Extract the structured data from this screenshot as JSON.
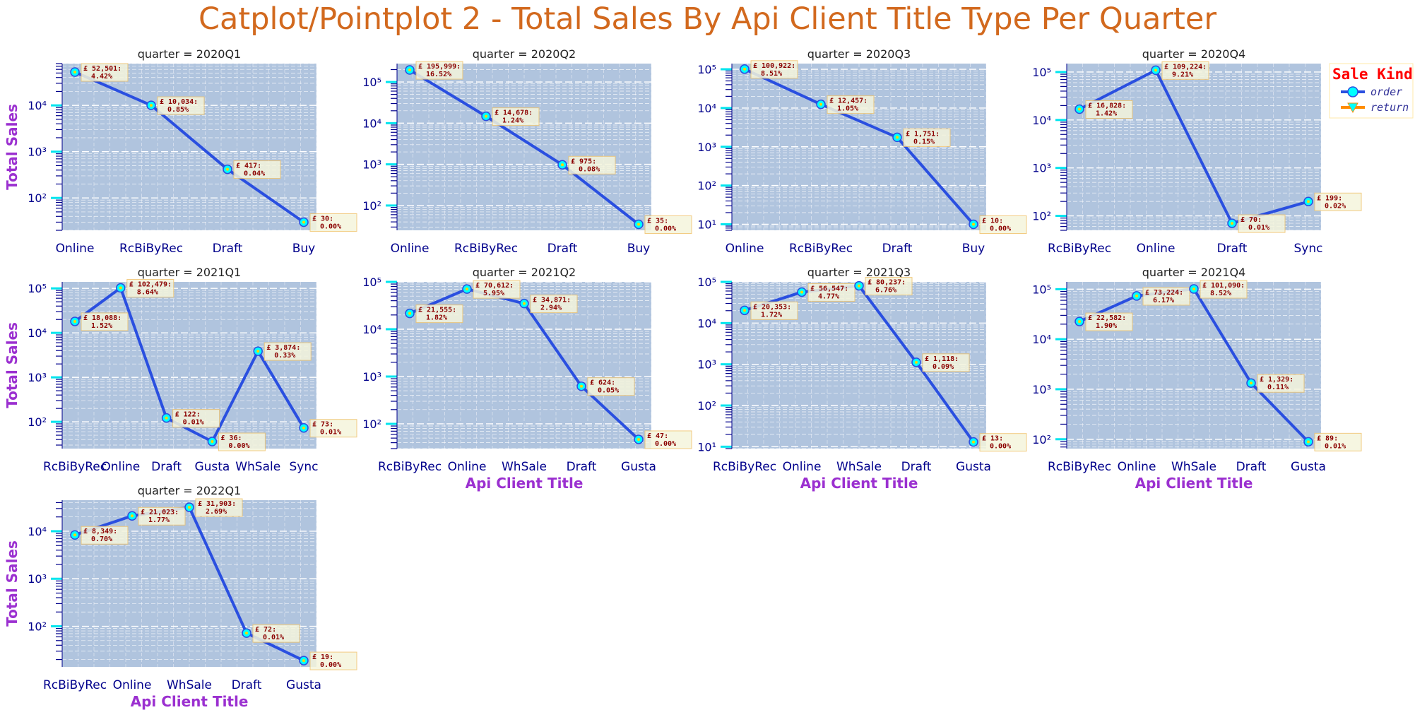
{
  "title": "Catplot/Pointplot 2 - Total Sales By Api Client Title Type Per Quarter",
  "chart_data": {
    "type": "line",
    "facet_label": "quarter",
    "ylabel": "Total Sales",
    "xlabel": "Api Client Title",
    "y_scale": "log",
    "colors": {
      "line": "#2a4fe0",
      "marker": "#00ffff",
      "plot_bg": "#b0c4de",
      "title": "#d2691e",
      "axis_label": "#9b30d0",
      "tick": "#00008b",
      "annotation": "#8b0000",
      "annotation_bg": "#f5f5dc",
      "legend_title": "#ff0000"
    },
    "legend": {
      "title": "Sale Kind",
      "placement": "top-right",
      "entries": [
        {
          "label": "order",
          "line_color": "#2a4fe0",
          "marker": "circle",
          "marker_color": "#00ffff"
        },
        {
          "label": "return",
          "line_color": "#ff8c00",
          "marker": "triangle-down",
          "marker_color": "#00ffff"
        }
      ]
    },
    "panels": [
      {
        "quarter": "2020Q1",
        "ylim": [
          20,
          80000
        ],
        "yticks": [
          {
            "v": 100,
            "t": "10²"
          },
          {
            "v": 1000,
            "t": "10³"
          },
          {
            "v": 10000,
            "t": "10⁴"
          }
        ],
        "categories": [
          "Online",
          "RcBiByRec",
          "Draft",
          "Buy"
        ],
        "series": [
          {
            "name": "order",
            "values": [
              52501,
              10034,
              417,
              30
            ],
            "labels": [
              "£ 52,501:",
              "£ 10,034:",
              "£ 417:",
              "£ 30:"
            ],
            "pcts": [
              "4.42%",
              "0.85%",
              "0.04%",
              "0.00%"
            ]
          }
        ]
      },
      {
        "quarter": "2020Q2",
        "ylim": [
          25,
          280000
        ],
        "yticks": [
          {
            "v": 100,
            "t": "10²"
          },
          {
            "v": 1000,
            "t": "10³"
          },
          {
            "v": 10000,
            "t": "10⁴"
          },
          {
            "v": 100000,
            "t": "10⁵"
          }
        ],
        "categories": [
          "Online",
          "RcBiByRec",
          "Draft",
          "Buy"
        ],
        "series": [
          {
            "name": "order",
            "values": [
              195999,
              14678,
              975,
              35
            ],
            "labels": [
              "£ 195,999:",
              "£ 14,678:",
              "£ 975:",
              "£ 35:"
            ],
            "pcts": [
              "16.52%",
              "1.24%",
              "0.08%",
              "0.00%"
            ]
          }
        ]
      },
      {
        "quarter": "2020Q3",
        "ylim": [
          7,
          140000
        ],
        "yticks": [
          {
            "v": 10,
            "t": "10¹"
          },
          {
            "v": 100,
            "t": "10²"
          },
          {
            "v": 1000,
            "t": "10³"
          },
          {
            "v": 10000,
            "t": "10⁴"
          },
          {
            "v": 100000,
            "t": "10⁵"
          }
        ],
        "categories": [
          "Online",
          "RcBiByRec",
          "Draft",
          "Buy"
        ],
        "series": [
          {
            "name": "order",
            "values": [
              100922,
              12457,
              1751,
              10
            ],
            "labels": [
              "£ 100,922:",
              "£ 12,457:",
              "£ 1,751:",
              "£ 10:"
            ],
            "pcts": [
              "8.51%",
              "1.05%",
              "0.15%",
              "0.00%"
            ]
          }
        ]
      },
      {
        "quarter": "2020Q4",
        "ylim": [
          50,
          150000
        ],
        "yticks": [
          {
            "v": 100,
            "t": "10²"
          },
          {
            "v": 1000,
            "t": "10³"
          },
          {
            "v": 10000,
            "t": "10⁴"
          },
          {
            "v": 100000,
            "t": "10⁵"
          }
        ],
        "categories": [
          "RcBiByRec",
          "Online",
          "Draft",
          "Sync"
        ],
        "series": [
          {
            "name": "order",
            "values": [
              16828,
              109224,
              70,
              199
            ],
            "labels": [
              "£ 16,828:",
              "£ 109,224:",
              "£ 70:",
              "£ 199:"
            ],
            "pcts": [
              "1.42%",
              "9.21%",
              "0.01%",
              "0.02%"
            ]
          }
        ]
      },
      {
        "quarter": "2021Q1",
        "ylim": [
          25,
          140000
        ],
        "yticks": [
          {
            "v": 100,
            "t": "10²"
          },
          {
            "v": 1000,
            "t": "10³"
          },
          {
            "v": 10000,
            "t": "10⁴"
          },
          {
            "v": 100000,
            "t": "10⁵"
          }
        ],
        "categories": [
          "RcBiByRec",
          "Online",
          "Draft",
          "Gusta",
          "WhSale",
          "Sync"
        ],
        "series": [
          {
            "name": "order",
            "values": [
              18088,
              102479,
              122,
              36,
              3874,
              73
            ],
            "labels": [
              "£ 18,088:",
              "£ 102,479:",
              "£ 122:",
              "£ 36:",
              "£ 3,874:",
              "£ 73:"
            ],
            "pcts": [
              "1.52%",
              "8.64%",
              "0.01%",
              "0.00%",
              "0.33%",
              "0.01%"
            ]
          }
        ]
      },
      {
        "quarter": "2021Q2",
        "ylim": [
          30,
          100000
        ],
        "yticks": [
          {
            "v": 100,
            "t": "10²"
          },
          {
            "v": 1000,
            "t": "10³"
          },
          {
            "v": 10000,
            "t": "10⁴"
          },
          {
            "v": 100000,
            "t": "10⁵"
          }
        ],
        "categories": [
          "RcBiByRec",
          "Online",
          "WhSale",
          "Draft",
          "Gusta"
        ],
        "series": [
          {
            "name": "order",
            "values": [
              21555,
              70612,
              34871,
              624,
              47
            ],
            "labels": [
              "£ 21,555:",
              "£ 70,612:",
              "£ 34,871:",
              "£ 624:",
              "£ 47:"
            ],
            "pcts": [
              "1.82%",
              "5.95%",
              "2.94%",
              "0.05%",
              "0.00%"
            ]
          }
        ]
      },
      {
        "quarter": "2021Q3",
        "ylim": [
          9,
          100000
        ],
        "yticks": [
          {
            "v": 10,
            "t": "10¹"
          },
          {
            "v": 100,
            "t": "10²"
          },
          {
            "v": 1000,
            "t": "10³"
          },
          {
            "v": 10000,
            "t": "10⁴"
          },
          {
            "v": 100000,
            "t": "10⁵"
          }
        ],
        "categories": [
          "RcBiByRec",
          "Online",
          "WhSale",
          "Draft",
          "Gusta"
        ],
        "series": [
          {
            "name": "order",
            "values": [
              20353,
              56547,
              80237,
              1118,
              13
            ],
            "labels": [
              "£ 20,353:",
              "£ 56,547:",
              "£ 80,237:",
              "£ 1,118:",
              "£ 13:"
            ],
            "pcts": [
              "1.72%",
              "4.77%",
              "6.76%",
              "0.09%",
              "0.00%"
            ]
          }
        ]
      },
      {
        "quarter": "2021Q4",
        "ylim": [
          65,
          140000
        ],
        "yticks": [
          {
            "v": 100,
            "t": "10²"
          },
          {
            "v": 1000,
            "t": "10³"
          },
          {
            "v": 10000,
            "t": "10⁴"
          },
          {
            "v": 100000,
            "t": "10⁵"
          }
        ],
        "categories": [
          "RcBiByRec",
          "Online",
          "WhSale",
          "Draft",
          "Gusta"
        ],
        "series": [
          {
            "name": "order",
            "values": [
              22582,
              73224,
              101090,
              1329,
              89
            ],
            "labels": [
              "£ 22,582:",
              "£ 73,224:",
              "£ 101,090:",
              "£ 1,329:",
              "£ 89:"
            ],
            "pcts": [
              "1.90%",
              "6.17%",
              "8.52%",
              "0.11%",
              "0.01%"
            ]
          }
        ]
      },
      {
        "quarter": "2022Q1",
        "ylim": [
          14,
          45000
        ],
        "yticks": [
          {
            "v": 100,
            "t": "10²"
          },
          {
            "v": 1000,
            "t": "10³"
          },
          {
            "v": 10000,
            "t": "10⁴"
          }
        ],
        "categories": [
          "RcBiByRec",
          "Online",
          "WhSale",
          "Draft",
          "Gusta"
        ],
        "series": [
          {
            "name": "order",
            "values": [
              8349,
              21023,
              31903,
              72,
              19
            ],
            "labels": [
              "£ 8,349:",
              "£ 21,023:",
              "£ 31,903:",
              "£ 72:",
              "£ 19:"
            ],
            "pcts": [
              "0.70%",
              "1.77%",
              "2.69%",
              "0.01%",
              "0.00%"
            ]
          }
        ]
      }
    ]
  }
}
